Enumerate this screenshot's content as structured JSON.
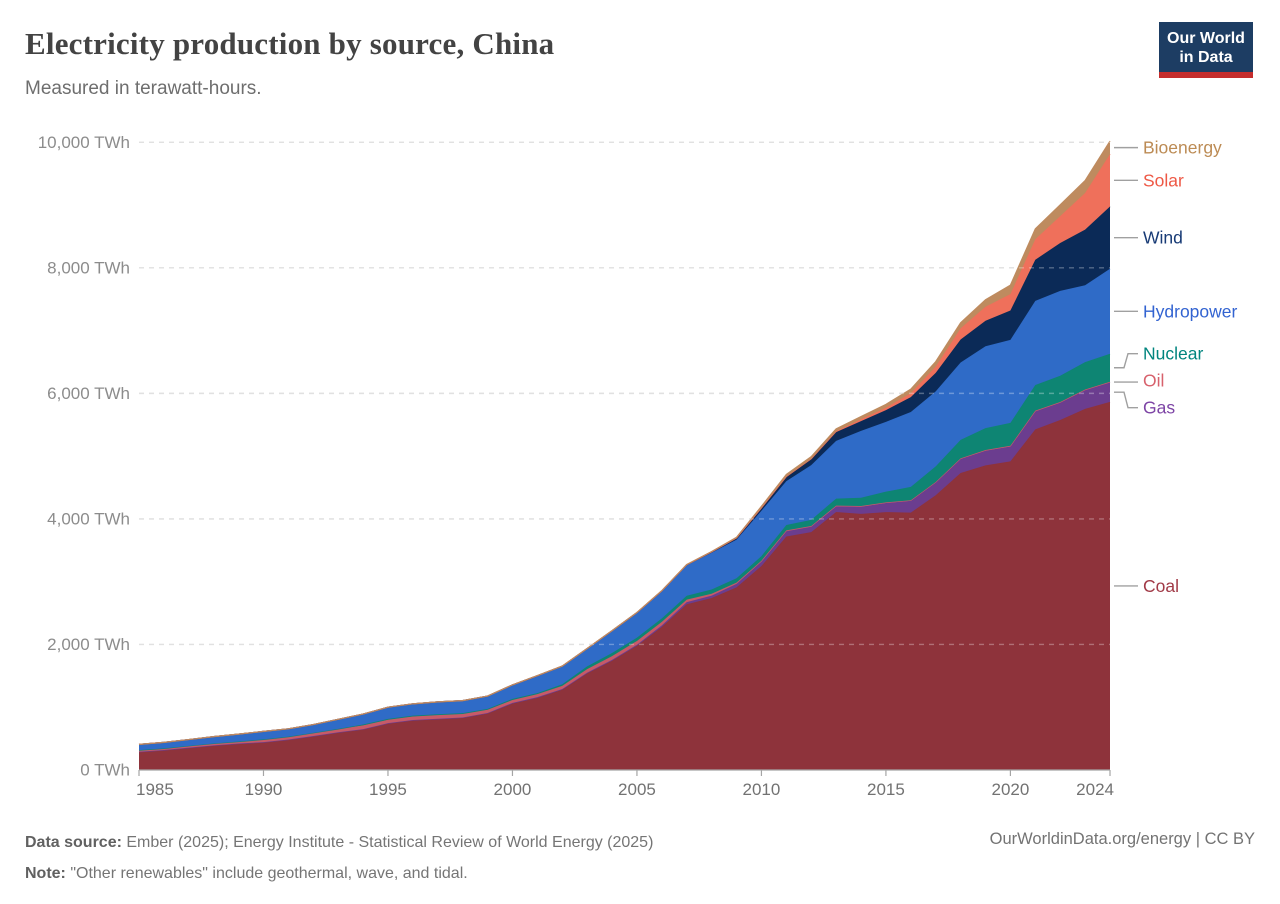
{
  "header": {
    "title": "Electricity production by source, China",
    "subtitle": "Measured in terawatt-hours."
  },
  "logo": {
    "line1": "Our World",
    "line2": "in Data",
    "bg_color": "#1d3d63",
    "bar_color": "#c52d2d"
  },
  "chart_data": {
    "type": "area",
    "stacked": true,
    "title": "Electricity production by source, China",
    "subtitle": "Measured in terawatt-hours.",
    "xlabel": "",
    "ylabel": "TWh",
    "x_range": [
      1985,
      2024
    ],
    "ylim": [
      0,
      10000
    ],
    "grid": "dashed horizontal",
    "legend_position": "right",
    "x": [
      1985,
      1986,
      1987,
      1988,
      1989,
      1990,
      1991,
      1992,
      1993,
      1994,
      1995,
      1996,
      1997,
      1998,
      1999,
      2000,
      2001,
      2002,
      2003,
      2004,
      2005,
      2006,
      2007,
      2008,
      2009,
      2010,
      2011,
      2012,
      2013,
      2014,
      2015,
      2016,
      2017,
      2018,
      2019,
      2020,
      2021,
      2022,
      2023,
      2024
    ],
    "series": [
      {
        "name": "Coal",
        "color": "#8e333b",
        "label_color": "#a13a47",
        "values": [
          290,
          318,
          356,
          392,
          420,
          441,
          482,
          539,
          598,
          648,
          740,
          790,
          810,
          830,
          900,
          1060,
          1150,
          1280,
          1540,
          1740,
          1980,
          2280,
          2640,
          2740,
          2910,
          3250,
          3720,
          3790,
          4110,
          4080,
          4109,
          4100,
          4377,
          4732,
          4854,
          4917,
          5427,
          5575,
          5754,
          5864
        ]
      },
      {
        "name": "Gas",
        "color": "#6b3d8f",
        "label_color": "#7d44a5",
        "values": [
          1,
          1,
          1,
          1,
          2,
          3,
          3,
          3,
          3,
          4,
          6,
          6,
          7,
          7,
          9,
          9,
          10,
          11,
          12,
          14,
          16,
          25,
          34,
          38,
          55,
          69,
          84,
          85,
          90,
          114,
          145,
          188,
          203,
          223,
          233,
          237,
          287,
          276,
          296,
          310
        ]
      },
      {
        "name": "Oil",
        "color": "#c75a68",
        "label_color": "#d7616c",
        "values": [
          25,
          26,
          28,
          30,
          32,
          44,
          46,
          50,
          54,
          58,
          55,
          56,
          58,
          56,
          50,
          47,
          48,
          50,
          55,
          60,
          60,
          55,
          40,
          30,
          20,
          15,
          14,
          13,
          12,
          11,
          9,
          10,
          9,
          10,
          11,
          11,
          11,
          12,
          12,
          12
        ]
      },
      {
        "name": "Nuclear",
        "color": "#0e8573",
        "label_color": "#00847e",
        "values": [
          0,
          0,
          0,
          0,
          0,
          0,
          0,
          0,
          0,
          14,
          13,
          14,
          14,
          14,
          15,
          17,
          17,
          25,
          43,
          50,
          53,
          55,
          62,
          68,
          70,
          74,
          86,
          97,
          112,
          133,
          171,
          213,
          248,
          295,
          349,
          366,
          408,
          418,
          435,
          445
        ]
      },
      {
        "name": "Hydropower",
        "color": "#2f6bc7",
        "label_color": "#3263d1",
        "values": [
          92,
          95,
          100,
          109,
          118,
          127,
          125,
          132,
          152,
          167,
          187,
          188,
          196,
          198,
          203,
          222,
          277,
          288,
          284,
          354,
          397,
          436,
          485,
          585,
          616,
          722,
          699,
          872,
          920,
          1064,
          1113,
          1193,
          1195,
          1232,
          1304,
          1322,
          1340,
          1352,
          1226,
          1354
        ]
      },
      {
        "name": "Wind",
        "color": "#0b2a57",
        "label_color": "#173a75",
        "values": [
          0,
          0,
          0,
          0,
          0,
          0,
          0,
          0,
          0,
          0,
          0,
          0,
          0,
          0,
          1,
          1,
          1,
          1,
          1,
          1,
          2,
          4,
          9,
          15,
          27,
          45,
          70,
          96,
          138,
          156,
          186,
          237,
          295,
          366,
          406,
          467,
          656,
          763,
          886,
          992
        ]
      },
      {
        "name": "Solar",
        "color": "#ef705b",
        "label_color": "#ee5845",
        "values": [
          0,
          0,
          0,
          0,
          0,
          0,
          0,
          0,
          0,
          0,
          0,
          0,
          0,
          0,
          0,
          0,
          0,
          0,
          0,
          0,
          0,
          0,
          0,
          0,
          0,
          1,
          3,
          6,
          15,
          29,
          39,
          62,
          100,
          177,
          224,
          261,
          327,
          428,
          584,
          834
        ]
      },
      {
        "name": "Bioenergy",
        "color": "#be8b5f",
        "label_color": "#bc8b54",
        "values": [
          0,
          0,
          0,
          0,
          0,
          0,
          0,
          0,
          0,
          0,
          0,
          0,
          0,
          0,
          0,
          0,
          1,
          1,
          1,
          2,
          2,
          3,
          4,
          5,
          10,
          25,
          32,
          34,
          38,
          44,
          53,
          65,
          79,
          91,
          111,
          143,
          166,
          180,
          198,
          208
        ]
      }
    ],
    "yticks": [
      {
        "value": 0,
        "label": "0 TWh"
      },
      {
        "value": 2000,
        "label": "2,000 TWh"
      },
      {
        "value": 4000,
        "label": "4,000 TWh"
      },
      {
        "value": 6000,
        "label": "6,000 TWh"
      },
      {
        "value": 8000,
        "label": "8,000 TWh"
      },
      {
        "value": 10000,
        "label": "10,000 TWh"
      }
    ],
    "xticks": [
      {
        "value": 1985,
        "label": "1985"
      },
      {
        "value": 1990,
        "label": "1990"
      },
      {
        "value": 1995,
        "label": "1995"
      },
      {
        "value": 2000,
        "label": "2000"
      },
      {
        "value": 2005,
        "label": "2005"
      },
      {
        "value": 2010,
        "label": "2010"
      },
      {
        "value": 2015,
        "label": "2015"
      },
      {
        "value": 2020,
        "label": "2020"
      },
      {
        "value": 2024,
        "label": "2024"
      }
    ]
  },
  "footer": {
    "source_label": "Data source:",
    "source_text": " Ember (2025); Energy Institute - Statistical Review of World Energy (2025)",
    "note_label": "Note:",
    "note_text": " \"Other renewables\" include geothermal, wave, and tidal.",
    "credit": "OurWorldinData.org/energy | CC BY"
  }
}
